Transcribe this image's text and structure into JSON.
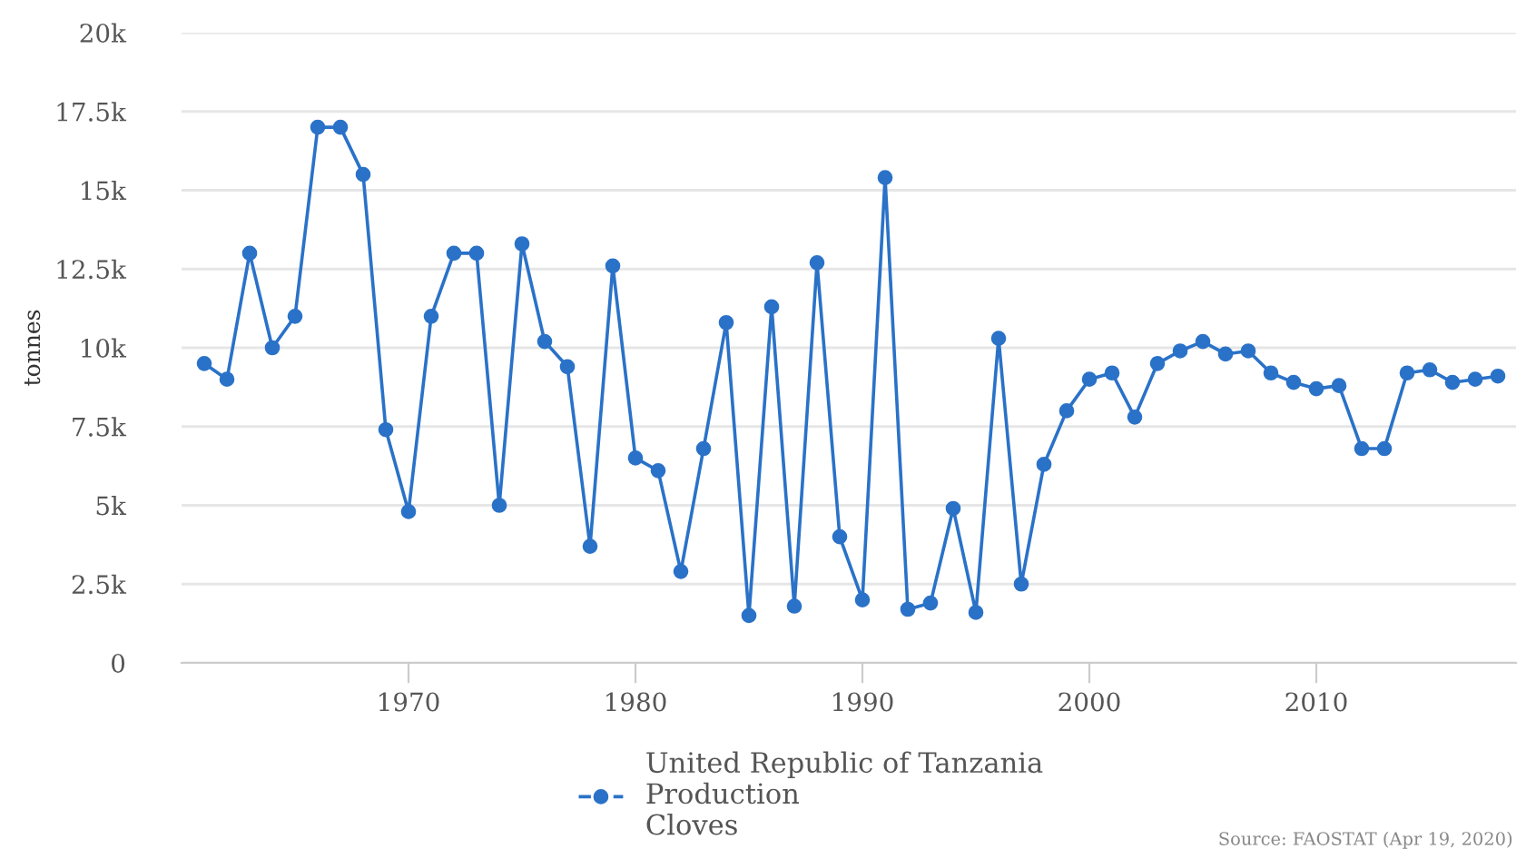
{
  "chart_data": {
    "type": "line",
    "ylabel": "tonnes",
    "x": [
      1961,
      1962,
      1963,
      1964,
      1965,
      1966,
      1967,
      1968,
      1969,
      1970,
      1971,
      1972,
      1973,
      1974,
      1975,
      1976,
      1977,
      1978,
      1979,
      1980,
      1981,
      1982,
      1983,
      1984,
      1985,
      1986,
      1987,
      1988,
      1989,
      1990,
      1991,
      1992,
      1993,
      1994,
      1995,
      1996,
      1997,
      1998,
      1999,
      2000,
      2001,
      2002,
      2003,
      2004,
      2005,
      2006,
      2007,
      2008,
      2009,
      2010,
      2011,
      2012,
      2013,
      2014,
      2015,
      2016,
      2017,
      2018
    ],
    "series": [
      {
        "name": "United Republic of Tanzania\nProduction\nCloves",
        "color": "#2a72c8",
        "values": [
          9500,
          9000,
          13000,
          10000,
          11000,
          17000,
          17000,
          15500,
          7400,
          4800,
          11000,
          13000,
          13000,
          5000,
          13300,
          10200,
          9400,
          3700,
          12600,
          6500,
          6100,
          2900,
          6800,
          10800,
          1500,
          11300,
          1800,
          12700,
          4000,
          2000,
          15400,
          1700,
          1900,
          4900,
          1600,
          10300,
          2500,
          6300,
          8000,
          9000,
          9200,
          7800,
          9500,
          9900,
          10200,
          9800,
          9900,
          9200,
          8900,
          8700,
          8800,
          6800,
          6800,
          9200,
          9300,
          8900,
          9000,
          9100
        ]
      }
    ],
    "xlim": [
      1960,
      2018.8
    ],
    "xticks": [
      1970,
      1980,
      1990,
      2000,
      2010
    ],
    "ylim": [
      0,
      20000
    ],
    "yticks": [
      {
        "value": 0,
        "label": "0"
      },
      {
        "value": 2500,
        "label": "2.5k"
      },
      {
        "value": 5000,
        "label": "5k"
      },
      {
        "value": 7500,
        "label": "7.5k"
      },
      {
        "value": 10000,
        "label": "10k"
      },
      {
        "value": 12500,
        "label": "12.5k"
      },
      {
        "value": 15000,
        "label": "15k"
      },
      {
        "value": 17500,
        "label": "17.5k"
      },
      {
        "value": 20000,
        "label": "20k"
      }
    ],
    "grid": "y",
    "legend": "bottom",
    "marker": "circle",
    "line_style": "solid",
    "annotations": [
      "Source: FAOSTAT (Apr 19, 2020)"
    ]
  }
}
